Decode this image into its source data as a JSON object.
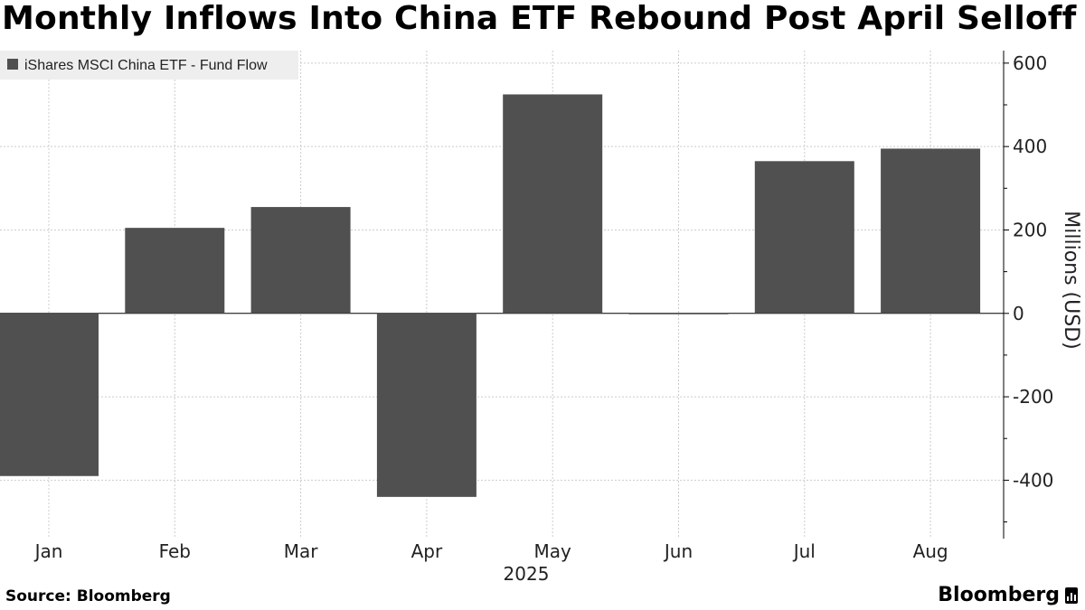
{
  "title": "Monthly Inflows Into China ETF Rebound Post April Selloff",
  "source": "Source: Bloomberg",
  "brand": "Bloomberg",
  "colors": {
    "bar": "#505050",
    "grid": "#cccccc",
    "legend_bg": "#eeeeee"
  },
  "chart_data": {
    "type": "bar",
    "categories": [
      "Jan",
      "Feb",
      "Mar",
      "Apr",
      "May",
      "Jun",
      "Jul",
      "Aug"
    ],
    "x_group_label": "2025",
    "series": [
      {
        "name": "iShares MSCI China ETF - Fund Flow",
        "values": [
          -390,
          205,
          255,
          -440,
          525,
          -2,
          365,
          395
        ]
      }
    ],
    "ylabel": "Millions (USD)",
    "ylim": [
      -540,
      630
    ],
    "yticks": [
      600,
      400,
      200,
      0,
      -200,
      -400
    ],
    "ytick_labels": [
      "600",
      "400",
      "200",
      "0",
      "-200",
      "-400"
    ],
    "grid": true,
    "legend_position": "top-left",
    "y_axis_side": "right"
  }
}
